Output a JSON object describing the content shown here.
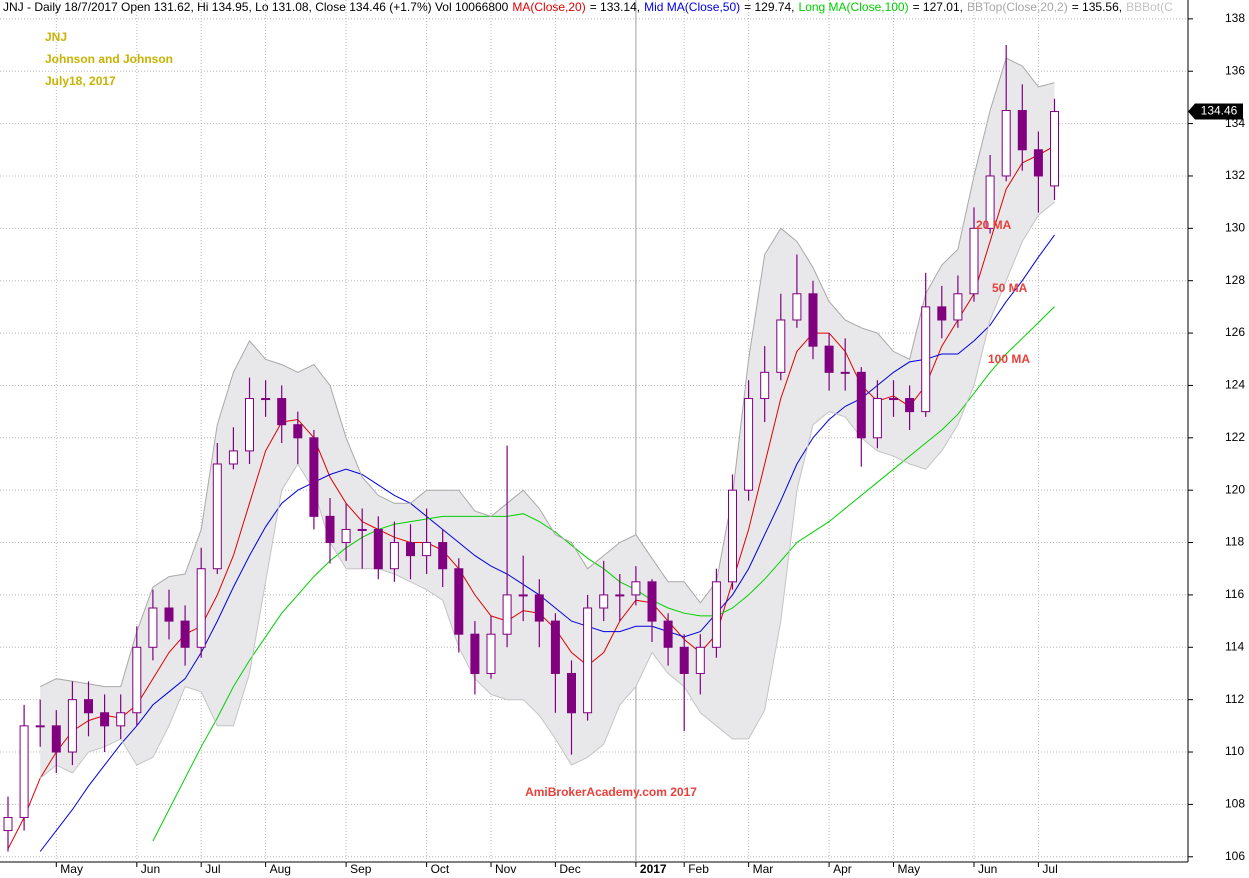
{
  "chart_data": {
    "type": "candlestick",
    "header": "JNJ - Daily 18/7/2017 Open 131.62, Hi 134.95, Lo 131.08, Close 134.46 (+1.7%) Vol 10066800",
    "title": [
      "JNJ",
      "Johnson and Johnson",
      "July18, 2017"
    ],
    "title_color": "#c8b400",
    "annotations": [
      {
        "text": "20 MA",
        "color": "#e8413c"
      },
      {
        "text": "50 MA",
        "color": "#e8413c"
      },
      {
        "text": "100 MA",
        "color": "#e8413c"
      },
      {
        "text": "AmiBrokerAcademy.com  2017",
        "color": "#e8413c"
      }
    ],
    "candle_color": "#800080",
    "categories": [
      null,
      null,
      null,
      "May",
      null,
      null,
      null,
      null,
      "Jun",
      null,
      null,
      null,
      "Jul",
      null,
      null,
      null,
      "Aug",
      null,
      null,
      null,
      null,
      "Sep",
      null,
      null,
      null,
      null,
      "Oct",
      null,
      null,
      null,
      "Nov",
      null,
      null,
      null,
      "Dec",
      null,
      null,
      null,
      null,
      "2017",
      null,
      null,
      "Feb",
      null,
      null,
      null,
      "Mar",
      null,
      null,
      null,
      null,
      "Apr",
      null,
      null,
      null,
      "May",
      null,
      null,
      null,
      null,
      "Jun",
      null,
      null,
      null,
      "Jul",
      null
    ],
    "bold_category_indices": [
      39
    ],
    "open": [
      107,
      107.5,
      111,
      111,
      110,
      112,
      111.5,
      111,
      111.5,
      114,
      115.5,
      115,
      114,
      117,
      121,
      121.5,
      123.5,
      123.5,
      122.5,
      122,
      119,
      118,
      118.5,
      118.5,
      117,
      118,
      117.5,
      118,
      117,
      114.5,
      113,
      114.5,
      116,
      116,
      115,
      113,
      111.5,
      115.5,
      116,
      116,
      116.5,
      115,
      114,
      113,
      114,
      116.5,
      120,
      123.5,
      124.5,
      126.5,
      127.5,
      125.5,
      124.5,
      124.5,
      122,
      123.5,
      123.5,
      123,
      127,
      126.5,
      127.5,
      130,
      132,
      134.5,
      133,
      131.62
    ],
    "high": [
      108.3,
      111.8,
      112,
      111.6,
      112.7,
      112.7,
      112.2,
      112.2,
      114.8,
      116.2,
      116.2,
      115.6,
      117.8,
      121.8,
      122.4,
      124.3,
      124.2,
      124,
      123,
      122.3,
      119.7,
      119.5,
      119.3,
      119,
      118.8,
      118.7,
      119.3,
      118.5,
      117.4,
      115,
      115.2,
      121.7,
      117.5,
      116.6,
      115.3,
      113.5,
      116,
      117.3,
      116.8,
      117.1,
      116.6,
      115.3,
      114.5,
      114.5,
      117,
      120.6,
      124.2,
      125.5,
      127.5,
      129,
      128,
      126,
      125.8,
      124.7,
      124.2,
      124.2,
      124,
      128.3,
      127.8,
      128.2,
      130.8,
      132.8,
      137,
      135.5,
      133.7,
      134.95
    ],
    "low": [
      106.2,
      107,
      110.2,
      109.2,
      109.5,
      110.6,
      110,
      110.5,
      111,
      113.5,
      114.3,
      113.3,
      113.6,
      116.8,
      120.8,
      121,
      122.8,
      121.8,
      121,
      118.5,
      117.2,
      117.3,
      117,
      116.6,
      116.5,
      116.6,
      116.8,
      116.3,
      113.8,
      112.2,
      112.8,
      114,
      115,
      114,
      111.5,
      109.9,
      111.2,
      115,
      115,
      115.6,
      114.2,
      113.3,
      110.8,
      112.2,
      113.6,
      116.2,
      119.6,
      122.6,
      124.2,
      126.2,
      125,
      123.8,
      123.8,
      120.9,
      121.6,
      122.8,
      122.3,
      122.8,
      125.8,
      126.2,
      127.2,
      129.8,
      131.8,
      132.2,
      130.6,
      131.08
    ],
    "close": [
      107.5,
      111,
      111,
      110,
      112,
      111.5,
      111,
      111.5,
      114,
      115.5,
      115,
      114,
      117,
      121,
      121.5,
      123.5,
      123.5,
      122.5,
      122,
      119,
      118,
      118.5,
      118.5,
      117,
      118,
      117.5,
      118,
      117,
      114.5,
      113,
      114.5,
      116,
      116,
      115,
      113,
      111.5,
      115.5,
      116,
      116,
      116.5,
      115,
      114,
      113,
      114,
      116.5,
      120,
      123.5,
      124.5,
      126.5,
      127.5,
      125.5,
      124.5,
      124.5,
      122,
      123.5,
      123.5,
      123,
      127,
      126.5,
      127.5,
      130,
      132,
      134.5,
      133,
      132,
      134.46
    ],
    "series": [
      {
        "name": "MA(Close,20)",
        "readout": "= 133.14,",
        "color": "#e00000",
        "values": [
          106.3,
          107.5,
          109,
          110,
          110.8,
          111.2,
          111.4,
          111.3,
          111.8,
          112.8,
          113.8,
          114.5,
          114.8,
          116,
          117.5,
          119.5,
          121.5,
          122.6,
          122.7,
          122,
          120.5,
          119.5,
          118.8,
          118.5,
          118.2,
          118,
          118,
          117.7,
          117,
          116,
          115.2,
          115,
          115.4,
          115.3,
          114.7,
          113.8,
          113.3,
          113.8,
          115,
          115.8,
          115.7,
          115,
          114.3,
          113.8,
          114.5,
          116.5,
          118.5,
          121,
          123.5,
          125.3,
          126,
          126,
          125.3,
          124,
          123.4,
          123.6,
          123.2,
          124,
          125.5,
          126.5,
          127.5,
          129.5,
          131.5,
          132.5,
          132.8,
          133.14
        ]
      },
      {
        "name": "Mid MA(Close,50)",
        "readout": "= 129.74,",
        "color": "#0000e0",
        "values": [
          null,
          null,
          106.2,
          107,
          107.8,
          108.7,
          109.5,
          110.3,
          111,
          111.8,
          112.3,
          112.8,
          113.8,
          115,
          116.3,
          117.5,
          118.6,
          119.5,
          120,
          120.3,
          120.6,
          120.8,
          120.6,
          120.2,
          119.8,
          119.5,
          119,
          118.5,
          118,
          117.5,
          117.1,
          116.8,
          116.4,
          116,
          115.5,
          115,
          114.8,
          114.6,
          114.6,
          114.8,
          114.8,
          114.6,
          114.4,
          114.6,
          115.3,
          116,
          117,
          118.3,
          119.6,
          121,
          122,
          122.7,
          123.2,
          123.5,
          124,
          124.5,
          124.9,
          125,
          125.2,
          125.2,
          125.7,
          126.3,
          127.2,
          128,
          128.9,
          129.74
        ]
      },
      {
        "name": "Long MA(Close,100)",
        "readout": "= 127.01,",
        "color": "#00d000",
        "values": [
          null,
          null,
          null,
          null,
          null,
          null,
          null,
          null,
          null,
          106.6,
          107.8,
          109,
          110.2,
          111.3,
          112.5,
          113.5,
          114.4,
          115.3,
          116,
          116.7,
          117.3,
          117.8,
          118.2,
          118.5,
          118.7,
          118.8,
          118.9,
          119,
          119,
          119,
          119,
          119,
          119.1,
          118.8,
          118.4,
          117.9,
          117.4,
          117,
          116.5,
          116.2,
          115.8,
          115.5,
          115.3,
          115.2,
          115.2,
          115.5,
          116,
          116.6,
          117.3,
          118,
          118.4,
          118.8,
          119.3,
          119.8,
          120.3,
          120.8,
          121.3,
          121.8,
          122.3,
          122.9,
          123.7,
          124.5,
          125.2,
          125.8,
          126.4,
          127.01
        ]
      },
      {
        "name": "BBTop(Close,20,2)",
        "readout": "= 135.56,",
        "color": "#a8a8a8",
        "values": [
          null,
          null,
          112.5,
          112.8,
          112.7,
          112.6,
          112.5,
          112.5,
          114.6,
          116.3,
          116.7,
          116.8,
          118.5,
          122.5,
          124.5,
          125.7,
          125,
          124.8,
          124.5,
          124.8,
          124,
          122,
          120.5,
          119.8,
          119.5,
          119.5,
          120,
          120,
          120,
          119.2,
          119,
          119.5,
          120,
          119.3,
          118.3,
          118,
          117,
          117.5,
          118,
          118.3,
          117.4,
          116.5,
          116.5,
          115.7,
          116.5,
          119.8,
          125,
          129,
          130,
          129.5,
          128.5,
          127.2,
          126.5,
          126.2,
          126,
          125.3,
          125,
          127.5,
          128.6,
          129.2,
          132,
          134.5,
          136.5,
          136.2,
          135.4,
          135.56
        ]
      },
      {
        "name": "BBBot(C",
        "color": "#c4c4c4",
        "values": [
          null,
          null,
          109,
          109.5,
          109.2,
          110,
          110.2,
          110.5,
          109.5,
          109.8,
          111,
          112.5,
          112.3,
          111,
          111,
          113,
          116.5,
          120,
          121,
          120,
          118,
          117,
          117,
          117,
          116.8,
          116.5,
          116.2,
          115.8,
          114,
          112.8,
          112.2,
          112,
          112,
          111.4,
          110.5,
          109.5,
          109.8,
          110.3,
          111.8,
          112.5,
          113.8,
          113,
          112.5,
          111.5,
          111,
          110.5,
          110.5,
          111.6,
          115,
          120,
          122.5,
          123,
          122.8,
          122,
          121.5,
          121.3,
          121,
          120.8,
          121.5,
          122.5,
          124,
          126.5,
          128,
          129.5,
          130.5,
          131
        ]
      }
    ],
    "band_fill": "#e8e8ea",
    "ylim": [
      105.8,
      138.72
    ],
    "yticks": [
      106,
      108,
      110,
      112,
      114,
      116,
      118,
      120,
      122,
      124,
      126,
      128,
      130,
      132,
      134,
      136,
      138
    ],
    "grid": true
  }
}
